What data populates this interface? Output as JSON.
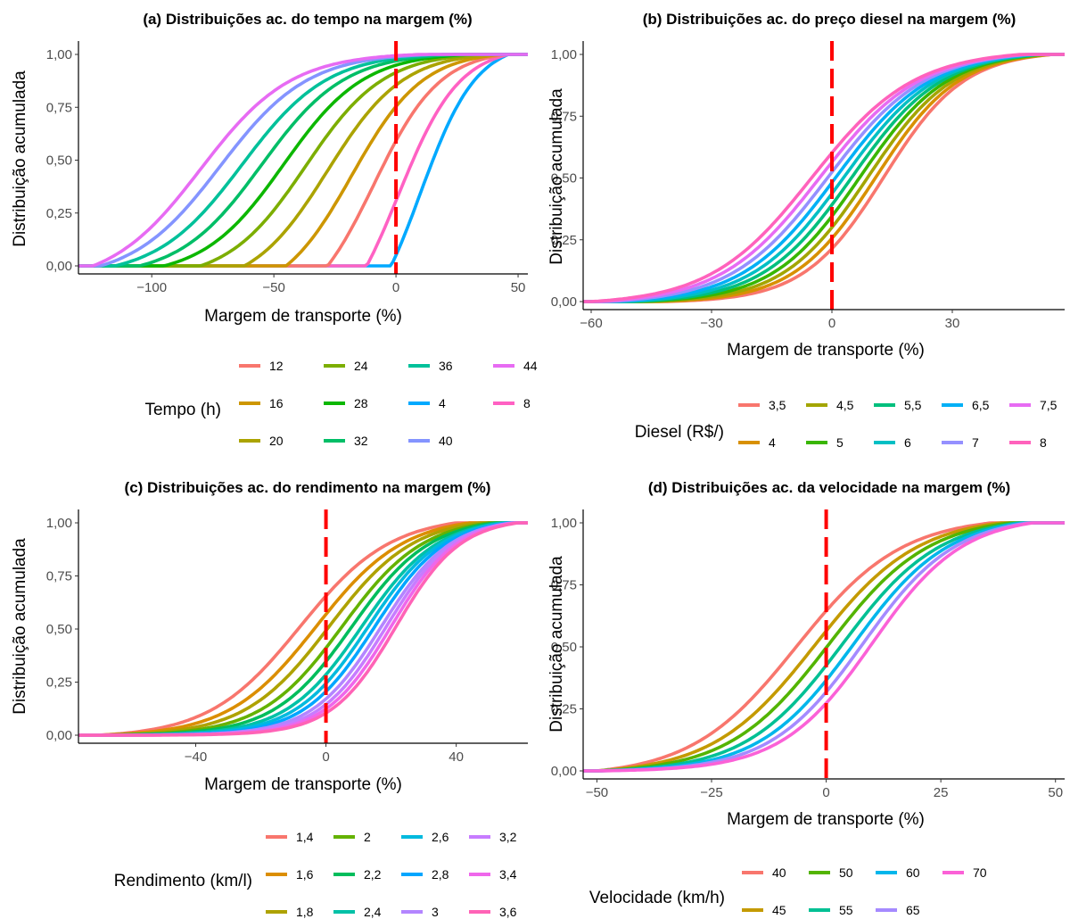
{
  "chart_data": [
    {
      "type": "line",
      "title": "(a) Distribuições ac. do tempo na margem (%)",
      "xlabel": "Margem de transporte (%)",
      "ylabel": "Distribuição acumulada",
      "xlim": [
        -130,
        54
      ],
      "ylim": [
        0,
        1
      ],
      "xticks": [
        {
          "v": -100,
          "label": "−100"
        },
        {
          "v": -50,
          "label": "−50"
        },
        {
          "v": 0,
          "label": "0"
        },
        {
          "v": 50,
          "label": "50"
        }
      ],
      "yticks": [
        {
          "v": 0,
          "label": "0,00"
        },
        {
          "v": 0.25,
          "label": "0,25"
        },
        {
          "v": 0.5,
          "label": "0,50"
        },
        {
          "v": 0.75,
          "label": "0,75"
        },
        {
          "v": 1,
          "label": "1,00"
        }
      ],
      "reference_line": {
        "x": 0,
        "color": "#ff0000",
        "style": "dashed"
      },
      "legend": {
        "title": "Tempo (h)",
        "placement": "bottom",
        "entries": [
          [
            "12",
            "24",
            "36",
            "44"
          ],
          [
            "16",
            "28",
            "4",
            "8"
          ],
          [
            "20",
            "32",
            "40"
          ]
        ]
      },
      "series": [
        {
          "name": "4",
          "color": "#00A9FF",
          "median": 10,
          "scale": 11.5,
          "min": -2,
          "max": 46
        },
        {
          "name": "8",
          "color": "#FF61C3",
          "median": 1,
          "scale": 12.5,
          "min": -12,
          "max": 46
        },
        {
          "name": "12",
          "color": "#F8766D",
          "median": -9,
          "scale": 13.5,
          "min": -28,
          "max": 45
        },
        {
          "name": "16",
          "color": "#CD9600",
          "median": -18,
          "scale": 14.5,
          "min": -45,
          "max": 43
        },
        {
          "name": "20",
          "color": "#ABA300",
          "median": -28,
          "scale": 15.5,
          "min": -62,
          "max": 40
        },
        {
          "name": "24",
          "color": "#7CAE00",
          "median": -37,
          "scale": 16,
          "min": -80,
          "max": 35
        },
        {
          "name": "28",
          "color": "#0CB702",
          "median": -46,
          "scale": 16.5,
          "min": -95,
          "max": 30
        },
        {
          "name": "32",
          "color": "#00BE67",
          "median": -55,
          "scale": 17,
          "min": -105,
          "max": 25
        },
        {
          "name": "36",
          "color": "#00C19A",
          "median": -63,
          "scale": 17.5,
          "min": -115,
          "max": 20
        },
        {
          "name": "40",
          "color": "#8494FF",
          "median": -72,
          "scale": 18,
          "min": -121,
          "max": 15
        },
        {
          "name": "44",
          "color": "#E76BF3",
          "median": -80,
          "scale": 18.5,
          "min": -124,
          "max": 10
        }
      ]
    },
    {
      "type": "line",
      "title": "(b) Distribuições ac. do preço diesel na margem (%)",
      "xlabel": "Margem de transporte (%)",
      "ylabel": "Distribuição acumulada",
      "xlim": [
        -62,
        58
      ],
      "ylim": [
        0,
        1
      ],
      "xticks": [
        {
          "v": -60,
          "label": "−60"
        },
        {
          "v": -30,
          "label": "−30"
        },
        {
          "v": 0,
          "label": "0"
        },
        {
          "v": 30,
          "label": "30"
        }
      ],
      "yticks": [
        {
          "v": 0,
          "label": "0,00"
        },
        {
          "v": 0.25,
          "label": "0,25"
        },
        {
          "v": 0.5,
          "label": "0,50"
        },
        {
          "v": 0.75,
          "label": "0,75"
        },
        {
          "v": 1,
          "label": "1,00"
        }
      ],
      "reference_line": {
        "x": 0,
        "color": "#ff0000",
        "style": "dashed"
      },
      "legend": {
        "title": "Diesel (R$/)",
        "placement": "bottom",
        "entries": [
          [
            "3,5",
            "4,5",
            "5,5",
            "6,5",
            "7,5"
          ],
          [
            "4",
            "5",
            "6",
            "7",
            "8"
          ]
        ]
      },
      "series": [
        {
          "name": "3,5",
          "color": "#F8766D",
          "median": 13,
          "scale": 10,
          "min": -42,
          "max": 55
        },
        {
          "name": "4",
          "color": "#D89000",
          "median": 11,
          "scale": 10.3,
          "min": -44,
          "max": 55
        },
        {
          "name": "4,5",
          "color": "#A3A500",
          "median": 9,
          "scale": 10.6,
          "min": -46,
          "max": 54
        },
        {
          "name": "5",
          "color": "#39B600",
          "median": 7,
          "scale": 10.9,
          "min": -48,
          "max": 53
        },
        {
          "name": "5,5",
          "color": "#00BF7D",
          "median": 5,
          "scale": 11.2,
          "min": -50,
          "max": 52
        },
        {
          "name": "6",
          "color": "#00BFC4",
          "median": 3,
          "scale": 11.5,
          "min": -52,
          "max": 51
        },
        {
          "name": "6,5",
          "color": "#00B0F6",
          "median": 1,
          "scale": 11.8,
          "min": -54,
          "max": 50
        },
        {
          "name": "7",
          "color": "#9590FF",
          "median": -1,
          "scale": 12.1,
          "min": -56,
          "max": 49
        },
        {
          "name": "7,5",
          "color": "#E76BF3",
          "median": -3,
          "scale": 12.4,
          "min": -58,
          "max": 48
        },
        {
          "name": "8",
          "color": "#FF62BC",
          "median": -5,
          "scale": 12.7,
          "min": -60,
          "max": 47
        }
      ]
    },
    {
      "type": "line",
      "title": "(c) Distribuições ac. do rendimento na margem (%)",
      "xlabel": "Margem de transporte (%)",
      "ylabel": "Distribuição acumulada",
      "xlim": [
        -76,
        62
      ],
      "ylim": [
        0,
        1
      ],
      "xticks": [
        {
          "v": -40,
          "label": "−40"
        },
        {
          "v": 0,
          "label": "0"
        },
        {
          "v": 40,
          "label": "40"
        }
      ],
      "yticks": [
        {
          "v": 0,
          "label": "0,00"
        },
        {
          "v": 0.25,
          "label": "0,25"
        },
        {
          "v": 0.5,
          "label": "0,50"
        },
        {
          "v": 0.75,
          "label": "0,75"
        },
        {
          "v": 1,
          "label": "1,00"
        }
      ],
      "reference_line": {
        "x": 0,
        "color": "#ff0000",
        "style": "dashed"
      },
      "legend": {
        "title": "Rendimento (km/l)",
        "placement": "bottom",
        "entries": [
          [
            "1,4",
            "2",
            "2,6",
            "3,2"
          ],
          [
            "1,6",
            "2,2",
            "2,8",
            "3,4"
          ],
          [
            "1,8",
            "2,4",
            "3",
            "3,6"
          ]
        ]
      },
      "series": [
        {
          "name": "1,4",
          "color": "#F8766D",
          "median": -8,
          "scale": 14,
          "min": -70,
          "max": 40
        },
        {
          "name": "1,6",
          "color": "#DB8E00",
          "median": -3,
          "scale": 13.5,
          "min": -70,
          "max": 44
        },
        {
          "name": "1,8",
          "color": "#AEA200",
          "median": 1,
          "scale": 13,
          "min": -70,
          "max": 47
        },
        {
          "name": "2",
          "color": "#64B200",
          "median": 5,
          "scale": 12.5,
          "min": -70,
          "max": 50
        },
        {
          "name": "2,2",
          "color": "#00BD5C",
          "median": 8,
          "scale": 12,
          "min": -70,
          "max": 52
        },
        {
          "name": "2,4",
          "color": "#00C1A7",
          "median": 11,
          "scale": 11.6,
          "min": -70,
          "max": 54
        },
        {
          "name": "2,6",
          "color": "#00BADE",
          "median": 13,
          "scale": 11.2,
          "min": -70,
          "max": 55
        },
        {
          "name": "2,8",
          "color": "#00A6FF",
          "median": 15,
          "scale": 10.9,
          "min": -70,
          "max": 56
        },
        {
          "name": "3",
          "color": "#B385FF",
          "median": 17,
          "scale": 10.6,
          "min": -70,
          "max": 57
        },
        {
          "name": "3,2",
          "color": "#C77CFF",
          "median": 18.5,
          "scale": 10.3,
          "min": -70,
          "max": 58
        },
        {
          "name": "3,4",
          "color": "#EF67EB",
          "median": 20,
          "scale": 10.1,
          "min": -70,
          "max": 58
        },
        {
          "name": "3,6",
          "color": "#FF63B6",
          "median": 21.5,
          "scale": 9.9,
          "min": -70,
          "max": 59
        }
      ]
    },
    {
      "type": "line",
      "title": "(d) Distribuições ac. da velocidade na margem (%)",
      "xlabel": "Margem de transporte (%)",
      "ylabel": "Distribuição acumulada",
      "xlim": [
        -53,
        52
      ],
      "ylim": [
        0,
        1
      ],
      "xticks": [
        {
          "v": -50,
          "label": "−50"
        },
        {
          "v": -25,
          "label": "−25"
        },
        {
          "v": 0,
          "label": "0"
        },
        {
          "v": 25,
          "label": "25"
        },
        {
          "v": 50,
          "label": "50"
        }
      ],
      "yticks": [
        {
          "v": 0,
          "label": "0,00"
        },
        {
          "v": 0.25,
          "label": "0,25"
        },
        {
          "v": 0.5,
          "label": "0,50"
        },
        {
          "v": 0.75,
          "label": "0,75"
        },
        {
          "v": 1,
          "label": "1,00"
        }
      ],
      "reference_line": {
        "x": 0,
        "color": "#ff0000",
        "style": "dashed"
      },
      "legend": {
        "title": "Velocidade (km/h)",
        "placement": "bottom",
        "entries": [
          [
            "40",
            "50",
            "60",
            "70"
          ],
          [
            "45",
            "55",
            "65"
          ]
        ]
      },
      "series": [
        {
          "name": "40",
          "color": "#F8766D",
          "median": -6.5,
          "scale": 11.5,
          "min": -50,
          "max": 36
        },
        {
          "name": "45",
          "color": "#C49A00",
          "median": -2.5,
          "scale": 11.2,
          "min": -50,
          "max": 38
        },
        {
          "name": "50",
          "color": "#53B400",
          "median": 0.5,
          "scale": 10.9,
          "min": -50,
          "max": 40
        },
        {
          "name": "55",
          "color": "#00C094",
          "median": 3.5,
          "scale": 10.6,
          "min": -50,
          "max": 42
        },
        {
          "name": "60",
          "color": "#00B6EB",
          "median": 6,
          "scale": 10.3,
          "min": -50,
          "max": 43
        },
        {
          "name": "65",
          "color": "#A58AFF",
          "median": 8,
          "scale": 10.1,
          "min": -50,
          "max": 44
        },
        {
          "name": "70",
          "color": "#FB61D7",
          "median": 10,
          "scale": 9.9,
          "min": -50,
          "max": 45
        }
      ]
    }
  ]
}
